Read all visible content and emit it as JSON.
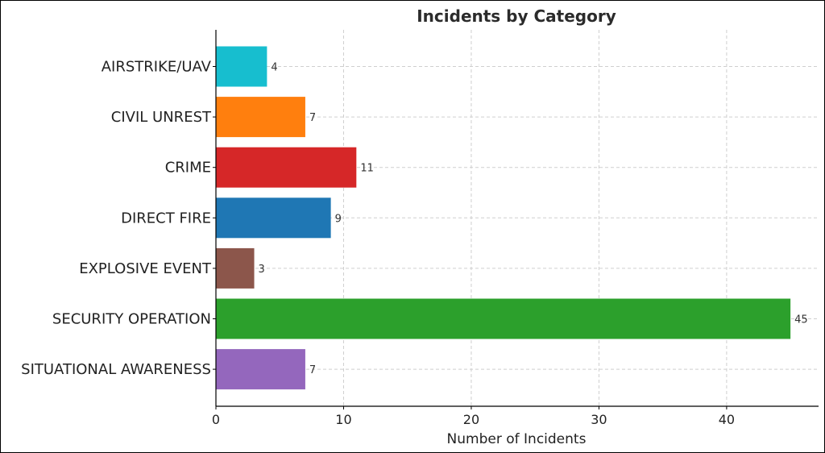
{
  "chart_data": {
    "type": "bar",
    "orientation": "horizontal",
    "title": "Incidents by Category",
    "xlabel": "Number of Incidents",
    "ylabel": "",
    "categories": [
      "AIRSTRIKE/UAV",
      "CIVIL UNREST",
      "CRIME",
      "DIRECT FIRE",
      "EXPLOSIVE EVENT",
      "SECURITY OPERATION",
      "SITUATIONAL AWARENESS"
    ],
    "values": [
      4,
      7,
      11,
      9,
      3,
      45,
      7
    ],
    "colors": [
      "#17becf",
      "#ff7f0e",
      "#d62728",
      "#1f77b4",
      "#8c564b",
      "#2ca02c",
      "#9467bd"
    ],
    "xlim": [
      0,
      47.2
    ],
    "xticks": [
      0,
      10,
      20,
      30,
      40
    ],
    "grid": true,
    "data_labels": true
  }
}
